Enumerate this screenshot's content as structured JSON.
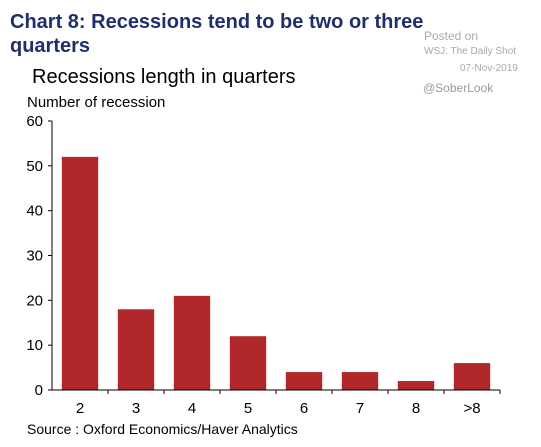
{
  "header": {
    "chart_title": "Chart 8: Recessions tend to be two or three quarters"
  },
  "watermark": {
    "posted": "Posted on",
    "source": "WSJ: The Daily Shot",
    "date": "07-Nov-2019",
    "handle": "@SoberLook"
  },
  "footer": {
    "source": "Source : Oxford Economics/Haver Analytics"
  },
  "chart_data": {
    "type": "bar",
    "title": "Recessions length in quarters",
    "ylabel": "Number of recession",
    "xlabel": "",
    "categories": [
      "2",
      "3",
      "4",
      "5",
      "6",
      "7",
      "8",
      ">8"
    ],
    "values": [
      52,
      18,
      21,
      12,
      4,
      4,
      2,
      6
    ],
    "ylim": [
      0,
      60
    ],
    "yticks": [
      0,
      10,
      20,
      30,
      40,
      50,
      60
    ],
    "bar_color": "#b0282a",
    "grid": false,
    "legend": "none"
  }
}
